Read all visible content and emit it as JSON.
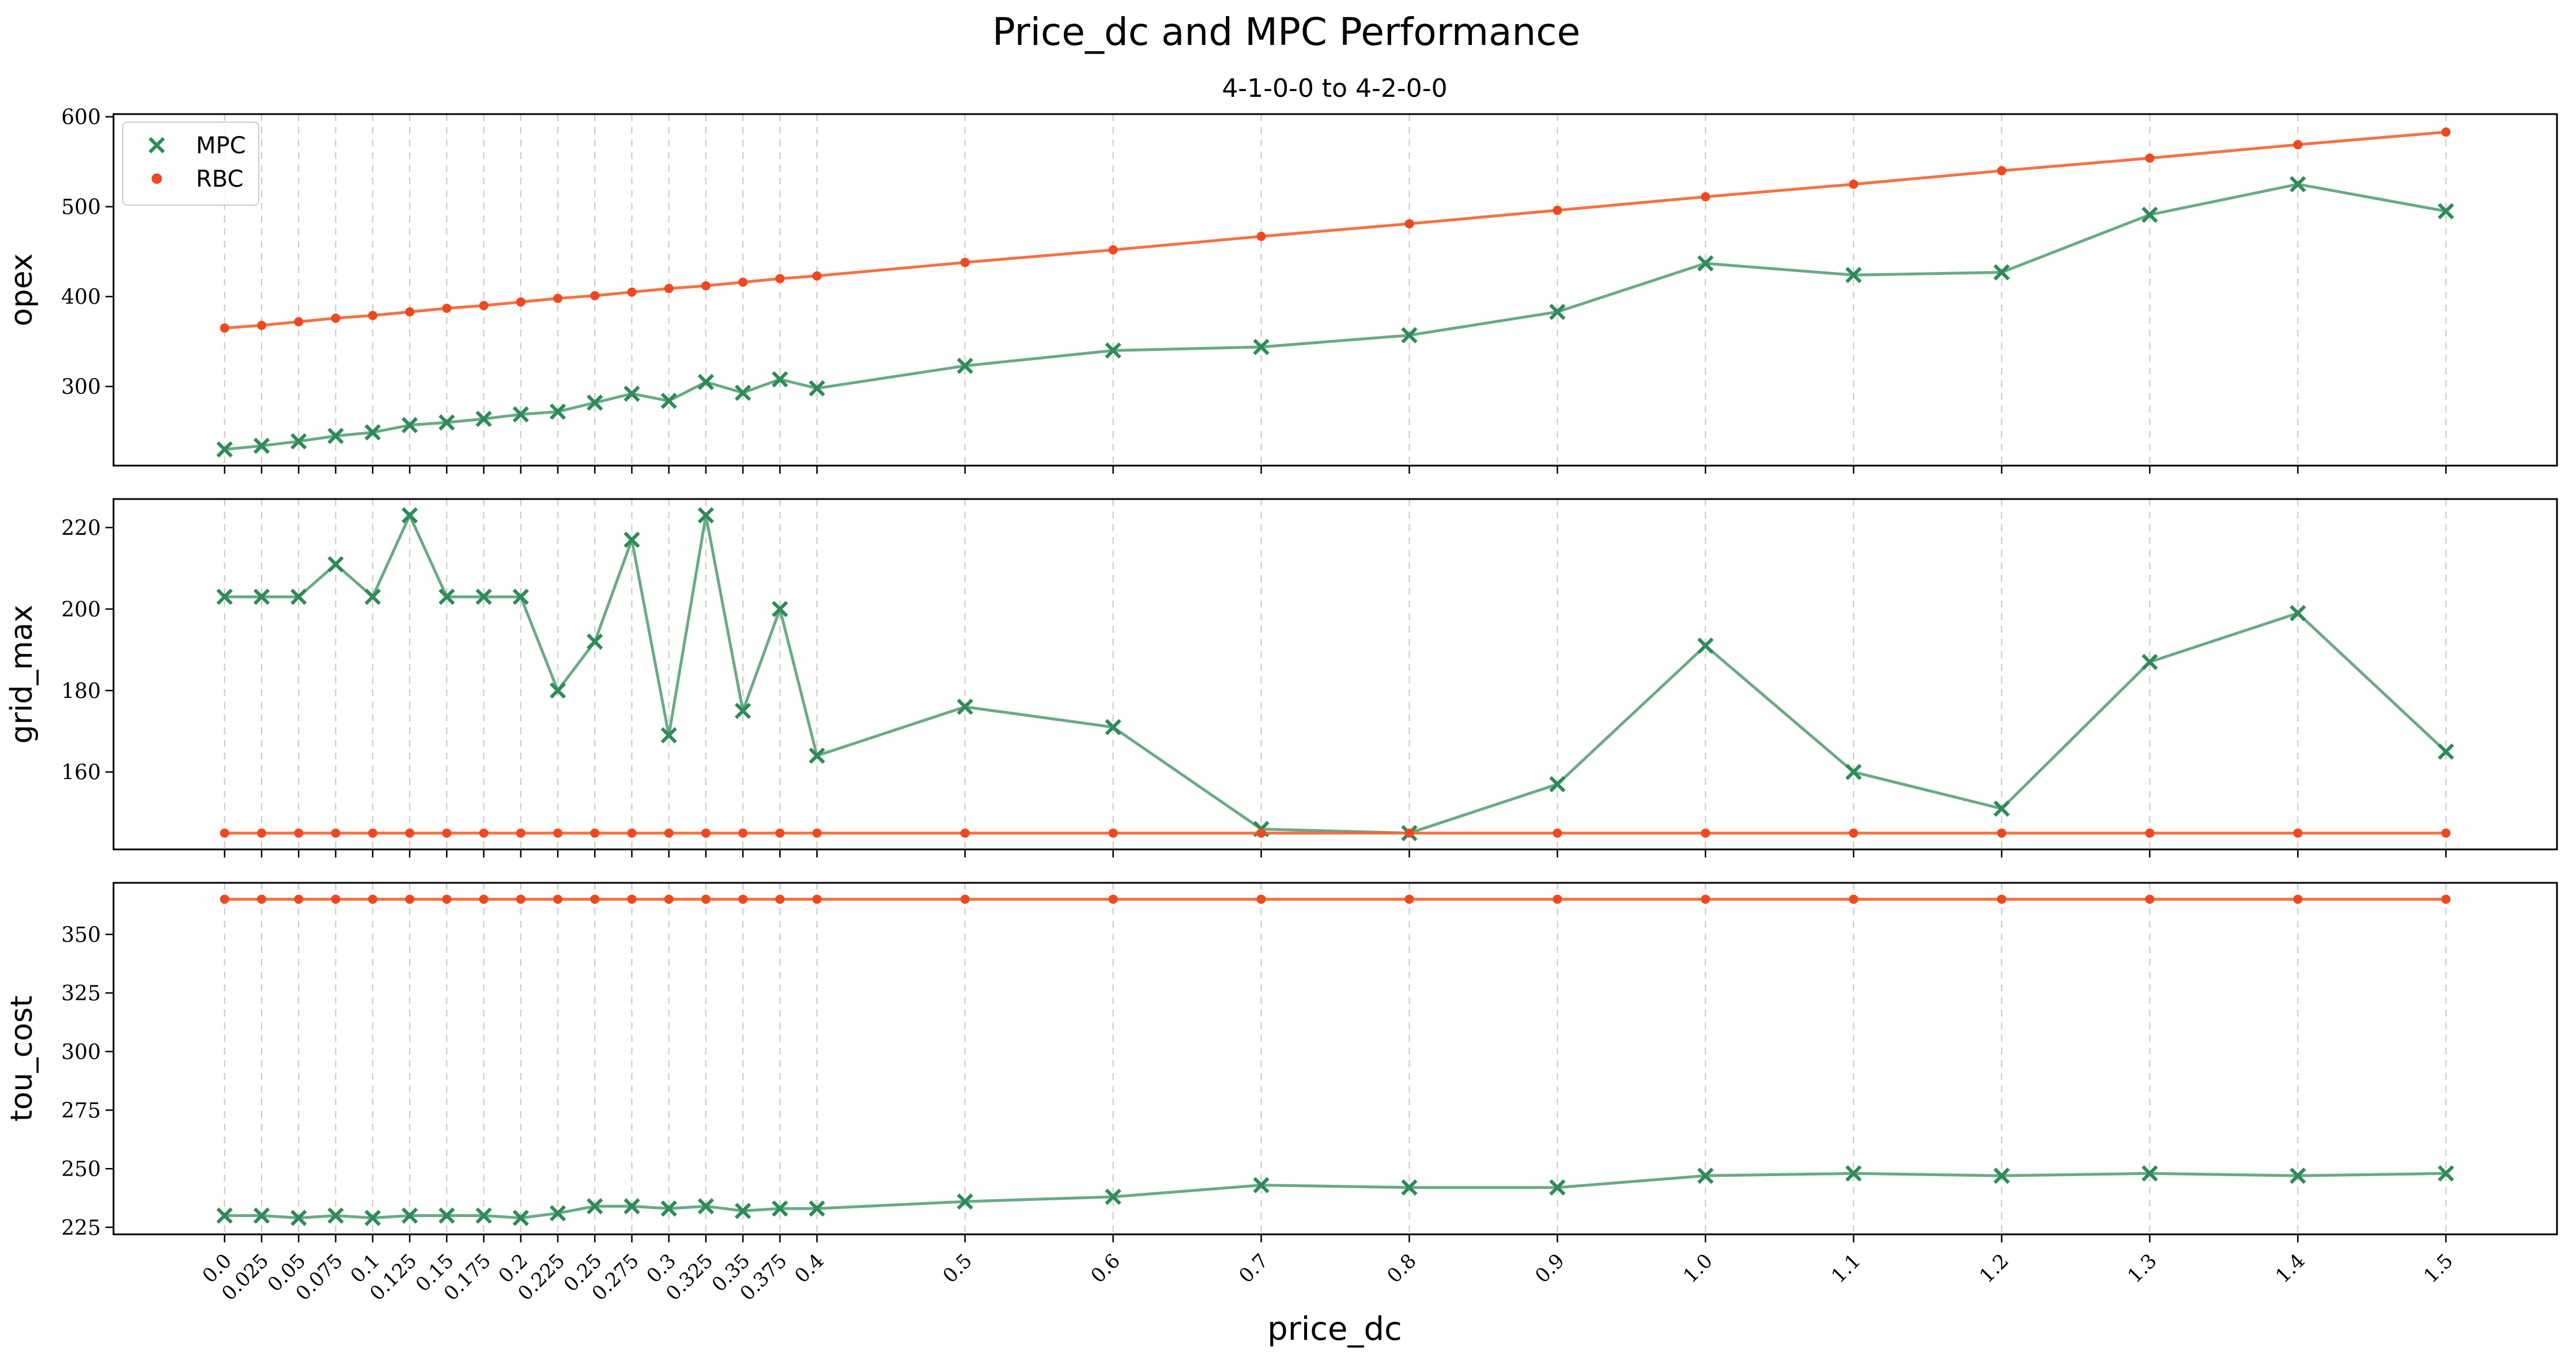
{
  "figure": {
    "title": "Price_dc and MPC Performance",
    "subtitle": "4-1-0-0 to 4-2-0-0"
  },
  "colors": {
    "mpc": "#2e8b57",
    "rbc": "#f26a3a",
    "rbc_marker": "#f0481e"
  },
  "chart_data": {
    "type": "line",
    "xlabel": "price_dc",
    "x": [
      0.0,
      0.025,
      0.05,
      0.075,
      0.1,
      0.125,
      0.15,
      0.175,
      0.2,
      0.225,
      0.25,
      0.275,
      0.3,
      0.325,
      0.35,
      0.375,
      0.4,
      0.5,
      0.6,
      0.7,
      0.8,
      0.9,
      1.0,
      1.1,
      1.2,
      1.3,
      1.4,
      1.5
    ],
    "x_tick_labels": [
      "0.0",
      "0.025",
      "0.05",
      "0.075",
      "0.1",
      "0.125",
      "0.15",
      "0.175",
      "0.2",
      "0.225",
      "0.25",
      "0.275",
      "0.3",
      "0.325",
      "0.35",
      "0.375",
      "0.4",
      "0.5",
      "0.6",
      "0.7",
      "0.8",
      "0.9",
      "1.0",
      "1.1",
      "1.2",
      "1.3",
      "1.4",
      "1.5"
    ],
    "xlim": [
      -0.075,
      1.575
    ],
    "grid": "vertical dashed at each x",
    "legend": {
      "placement": "upper-left",
      "entries": [
        "MPC",
        "RBC"
      ]
    },
    "panels": [
      {
        "ylabel": "opex",
        "ylim": [
          212,
          603
        ],
        "yticks": [
          300,
          400,
          500,
          600
        ],
        "series": [
          {
            "name": "MPC",
            "marker": "x",
            "values": [
              230,
              234,
              239,
              245,
              249,
              257,
              260,
              264,
              269,
              272,
              282,
              292,
              284,
              305,
              293,
              308,
              298,
              323,
              340,
              344,
              357,
              383,
              437,
              424,
              427,
              491,
              525,
              495
            ]
          },
          {
            "name": "RBC",
            "marker": "o",
            "values": [
              365,
              368,
              372,
              376,
              379,
              383,
              387,
              390,
              394,
              398,
              401,
              405,
              409,
              412,
              416,
              420,
              423,
              438,
              452,
              467,
              481,
              496,
              511,
              525,
              540,
              554,
              569,
              583
            ]
          }
        ]
      },
      {
        "ylabel": "grid_max",
        "ylim": [
          141,
          227
        ],
        "yticks": [
          160,
          180,
          200,
          220
        ],
        "series": [
          {
            "name": "MPC",
            "marker": "x",
            "values": [
              203,
              203,
              203,
              211,
              203,
              223,
              203,
              203,
              203,
              180,
              192,
              217,
              169,
              223,
              175,
              200,
              164,
              176,
              171,
              146,
              145,
              157,
              191,
              160,
              151,
              187,
              199,
              165
            ]
          },
          {
            "name": "RBC",
            "marker": "o",
            "values": [
              145,
              145,
              145,
              145,
              145,
              145,
              145,
              145,
              145,
              145,
              145,
              145,
              145,
              145,
              145,
              145,
              145,
              145,
              145,
              145,
              145,
              145,
              145,
              145,
              145,
              145,
              145,
              145
            ]
          }
        ]
      },
      {
        "ylabel": "tou_cost",
        "ylim": [
          222,
          372
        ],
        "yticks": [
          225,
          250,
          275,
          300,
          325,
          350
        ],
        "series": [
          {
            "name": "MPC",
            "marker": "x",
            "values": [
              230,
              230,
              229,
              230,
              229,
              230,
              230,
              230,
              229,
              231,
              234,
              234,
              233,
              234,
              232,
              233,
              233,
              236,
              238,
              243,
              242,
              242,
              247,
              248,
              247,
              248,
              247,
              248
            ]
          },
          {
            "name": "RBC",
            "marker": "o",
            "values": [
              365,
              365,
              365,
              365,
              365,
              365,
              365,
              365,
              365,
              365,
              365,
              365,
              365,
              365,
              365,
              365,
              365,
              365,
              365,
              365,
              365,
              365,
              365,
              365,
              365,
              365,
              365,
              365
            ]
          }
        ]
      }
    ]
  }
}
